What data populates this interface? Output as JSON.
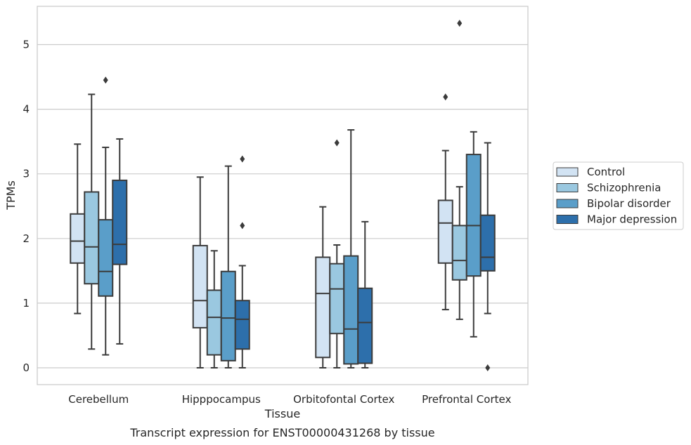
{
  "caption": "Transcript expression for ENST00000431268 by tissue",
  "chart_data": {
    "type": "box",
    "xlabel": "Tissue",
    "ylabel": "TPMs",
    "categories": [
      "Cerebellum",
      "Hipppocampus",
      "Orbitofontal Cortex",
      "Prefrontal Cortex"
    ],
    "ylim": [
      -0.25,
      5.6
    ],
    "yticks": [
      0,
      1,
      2,
      3,
      4,
      5
    ],
    "grid": "horizontal",
    "legend_position": "right",
    "series": [
      {
        "name": "Control",
        "color": "#d2e3f3",
        "boxes": [
          {
            "whislo": 0.84,
            "q1": 1.62,
            "med": 1.96,
            "q3": 2.38,
            "whishi": 3.46,
            "fliers": []
          },
          {
            "whislo": 0.0,
            "q1": 0.62,
            "med": 1.04,
            "q3": 1.89,
            "whishi": 2.95,
            "fliers": []
          },
          {
            "whislo": 0.0,
            "q1": 0.16,
            "med": 1.15,
            "q3": 1.71,
            "whishi": 2.49,
            "fliers": []
          },
          {
            "whislo": 0.9,
            "q1": 1.62,
            "med": 2.24,
            "q3": 2.59,
            "whishi": 3.36,
            "fliers": [
              4.19
            ]
          }
        ]
      },
      {
        "name": "Schizophrenia",
        "color": "#9ac8e0",
        "boxes": [
          {
            "whislo": 0.29,
            "q1": 1.3,
            "med": 1.87,
            "q3": 2.72,
            "whishi": 4.23,
            "fliers": []
          },
          {
            "whislo": 0.0,
            "q1": 0.2,
            "med": 0.78,
            "q3": 1.2,
            "whishi": 1.81,
            "fliers": []
          },
          {
            "whislo": 0.0,
            "q1": 0.53,
            "med": 1.22,
            "q3": 1.61,
            "whishi": 1.9,
            "fliers": [
              3.48
            ]
          },
          {
            "whislo": 0.75,
            "q1": 1.36,
            "med": 1.66,
            "q3": 2.2,
            "whishi": 2.8,
            "fliers": [
              5.33
            ]
          }
        ]
      },
      {
        "name": "Bipolar disorder",
        "color": "#5a9ec9",
        "boxes": [
          {
            "whislo": 0.2,
            "q1": 1.11,
            "med": 1.49,
            "q3": 2.29,
            "whishi": 3.41,
            "fliers": [
              4.45
            ]
          },
          {
            "whislo": 0.0,
            "q1": 0.11,
            "med": 0.77,
            "q3": 1.49,
            "whishi": 3.12,
            "fliers": []
          },
          {
            "whislo": 0.0,
            "q1": 0.06,
            "med": 0.6,
            "q3": 1.73,
            "whishi": 3.68,
            "fliers": []
          },
          {
            "whislo": 0.48,
            "q1": 1.42,
            "med": 2.2,
            "q3": 3.3,
            "whishi": 3.65,
            "fliers": []
          }
        ]
      },
      {
        "name": "Major depression",
        "color": "#2d6fab",
        "boxes": [
          {
            "whislo": 0.37,
            "q1": 1.6,
            "med": 1.91,
            "q3": 2.9,
            "whishi": 3.54,
            "fliers": []
          },
          {
            "whislo": 0.0,
            "q1": 0.29,
            "med": 0.75,
            "q3": 1.04,
            "whishi": 1.58,
            "fliers": [
              2.2,
              3.23
            ]
          },
          {
            "whislo": 0.0,
            "q1": 0.07,
            "med": 0.7,
            "q3": 1.23,
            "whishi": 2.26,
            "fliers": []
          },
          {
            "whislo": 0.84,
            "q1": 1.5,
            "med": 1.71,
            "q3": 2.36,
            "whishi": 3.48,
            "fliers": [
              0.0
            ]
          }
        ]
      }
    ]
  }
}
